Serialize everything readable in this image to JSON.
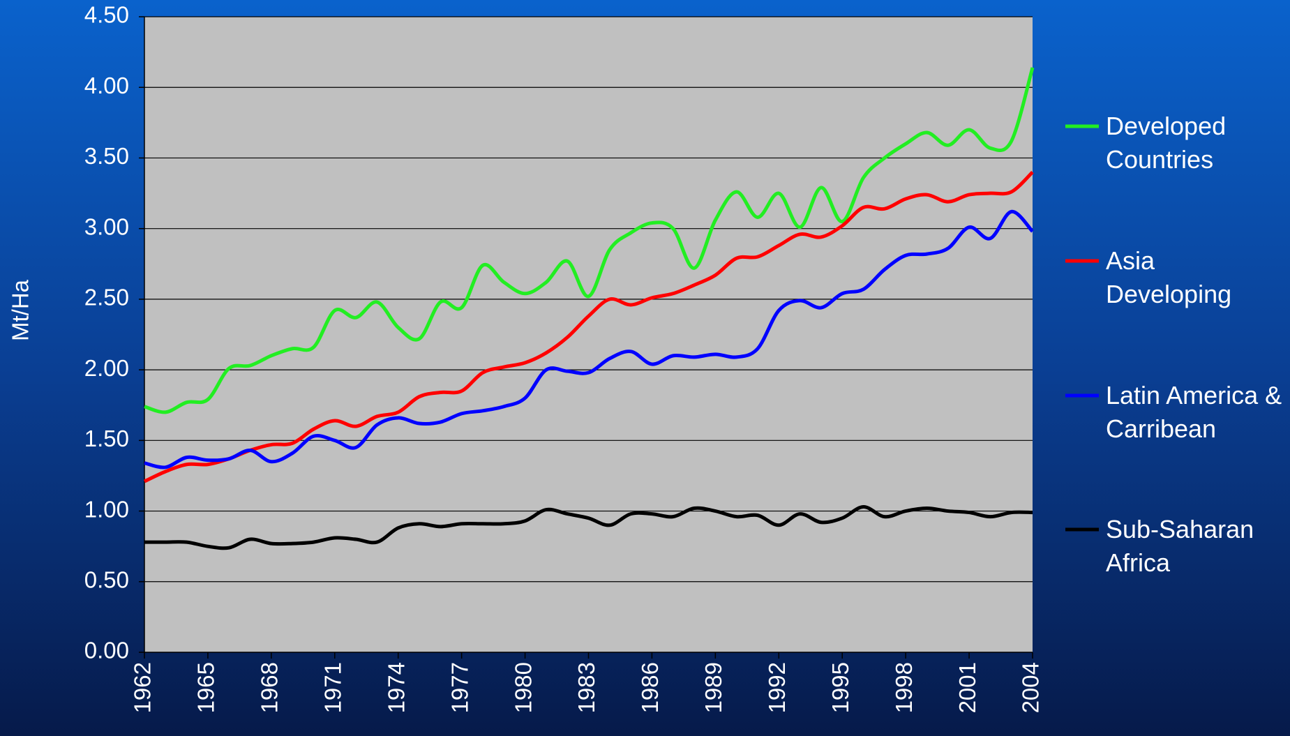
{
  "chart_data": {
    "type": "line",
    "y_label": "Mt/Ha",
    "x": [
      1962,
      1963,
      1964,
      1965,
      1966,
      1967,
      1968,
      1969,
      1970,
      1971,
      1972,
      1973,
      1974,
      1975,
      1976,
      1977,
      1978,
      1979,
      1980,
      1981,
      1982,
      1983,
      1984,
      1985,
      1986,
      1987,
      1988,
      1989,
      1990,
      1991,
      1992,
      1993,
      1994,
      1995,
      1996,
      1997,
      1998,
      1999,
      2000,
      2001,
      2002,
      2003,
      2004
    ],
    "xlim": [
      1962,
      2004
    ],
    "xticks": [
      1962,
      1965,
      1968,
      1971,
      1974,
      1977,
      1980,
      1983,
      1986,
      1989,
      1992,
      1995,
      1998,
      2001,
      2004
    ],
    "ylim": [
      0,
      4.5
    ],
    "yticks": [
      {
        "value": 0,
        "label": "0.00"
      },
      {
        "value": 0.5,
        "label": "0.50"
      },
      {
        "value": 1,
        "label": "1.00"
      },
      {
        "value": 1.5,
        "label": "1.50"
      },
      {
        "value": 2,
        "label": "2.00"
      },
      {
        "value": 2.5,
        "label": "2.50"
      },
      {
        "value": 3,
        "label": "3.00"
      },
      {
        "value": 3.5,
        "label": "3.50"
      },
      {
        "value": 4,
        "label": "4.00"
      },
      {
        "value": 4.5,
        "label": "4.50"
      }
    ],
    "grid": true,
    "legend": "right",
    "series": [
      {
        "name": "Developed Countries",
        "color": "#22ee22",
        "values": [
          1.74,
          1.7,
          1.77,
          1.79,
          2.01,
          2.03,
          2.1,
          2.15,
          2.16,
          2.42,
          2.37,
          2.48,
          2.3,
          2.22,
          2.48,
          2.44,
          2.74,
          2.62,
          2.54,
          2.62,
          2.77,
          2.52,
          2.85,
          2.97,
          3.04,
          3.0,
          2.72,
          3.06,
          3.26,
          3.08,
          3.25,
          3.01,
          3.29,
          3.05,
          3.36,
          3.5,
          3.6,
          3.68,
          3.59,
          3.7,
          3.57,
          3.62,
          4.14
        ]
      },
      {
        "name": "Asia Developing",
        "color": "#ff0000",
        "values": [
          1.21,
          1.28,
          1.33,
          1.33,
          1.37,
          1.43,
          1.47,
          1.48,
          1.58,
          1.64,
          1.6,
          1.67,
          1.7,
          1.81,
          1.84,
          1.85,
          1.98,
          2.02,
          2.05,
          2.12,
          2.23,
          2.38,
          2.5,
          2.46,
          2.51,
          2.54,
          2.6,
          2.67,
          2.79,
          2.8,
          2.88,
          2.96,
          2.94,
          3.02,
          3.15,
          3.14,
          3.21,
          3.24,
          3.19,
          3.24,
          3.25,
          3.26,
          3.4
        ]
      },
      {
        "name": "Latin America & Carribean",
        "color": "#0000ff",
        "values": [
          1.34,
          1.31,
          1.38,
          1.36,
          1.37,
          1.43,
          1.35,
          1.41,
          1.53,
          1.5,
          1.45,
          1.61,
          1.66,
          1.62,
          1.63,
          1.69,
          1.71,
          1.74,
          1.8,
          2.0,
          1.99,
          1.98,
          2.08,
          2.13,
          2.04,
          2.1,
          2.09,
          2.11,
          2.09,
          2.15,
          2.42,
          2.49,
          2.44,
          2.54,
          2.57,
          2.71,
          2.81,
          2.82,
          2.86,
          3.01,
          2.93,
          3.12,
          2.98
        ]
      },
      {
        "name": "Sub-Saharan Africa",
        "color": "#000000",
        "values": [
          0.78,
          0.78,
          0.78,
          0.75,
          0.74,
          0.8,
          0.77,
          0.77,
          0.78,
          0.81,
          0.8,
          0.78,
          0.88,
          0.91,
          0.89,
          0.91,
          0.91,
          0.91,
          0.93,
          1.01,
          0.98,
          0.95,
          0.9,
          0.98,
          0.98,
          0.96,
          1.02,
          1.0,
          0.96,
          0.97,
          0.9,
          0.98,
          0.92,
          0.95,
          1.03,
          0.96,
          1.0,
          1.02,
          1.0,
          0.99,
          0.96,
          0.99,
          0.99
        ]
      }
    ]
  }
}
